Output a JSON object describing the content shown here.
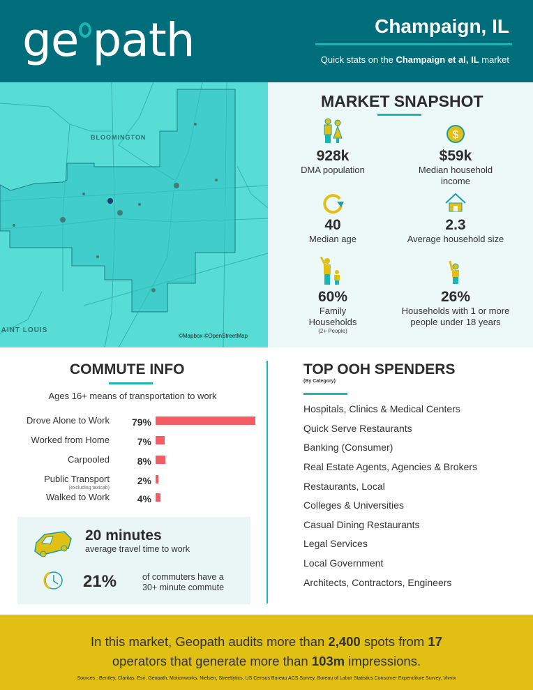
{
  "header": {
    "logo": "geopath",
    "city": "Champaign, IL",
    "subtitle_pre": "Quick stats on the ",
    "subtitle_bold": "Champaign et al, IL",
    "subtitle_post": " market"
  },
  "map": {
    "labels": [
      "BLOOMINGTON",
      "SAINT LOUIS"
    ],
    "attribution": "©Mapbox ©OpenStreetMap"
  },
  "snapshot": {
    "title": "MARKET SNAPSHOT",
    "stats": [
      {
        "icon": "couple-icon",
        "value": "928k",
        "label": "DMA population"
      },
      {
        "icon": "dollar-coin-icon",
        "value": "$59k",
        "label": "Median household income"
      },
      {
        "icon": "refresh-cycle-icon",
        "value": "40",
        "label": "Median age"
      },
      {
        "icon": "house-icon",
        "value": "2.3",
        "label": "Average household size"
      },
      {
        "icon": "parent-child-icon",
        "value": "60%",
        "label": "Family Households",
        "sublabel": "(2+ People)"
      },
      {
        "icon": "child-icon",
        "value": "26%",
        "label": "Households with 1 or more people under 18 years"
      }
    ]
  },
  "commute": {
    "title": "COMMUTE INFO",
    "subtitle": "Ages 16+ means of transportation to work",
    "rows": [
      {
        "label": "Drove Alone to Work",
        "value": 79,
        "display": "79%"
      },
      {
        "label": "Worked from Home",
        "value": 7,
        "display": "7%"
      },
      {
        "label": "Carpooled",
        "value": 8,
        "display": "8%"
      },
      {
        "label": "Public Transport",
        "note": "(excluding taxicab)",
        "value": 2,
        "display": "2%"
      },
      {
        "label": "Walked to Work",
        "value": 4,
        "display": "4%"
      }
    ],
    "travel_time": "20 minutes",
    "travel_time_label": "average travel time to work",
    "long_commute": "21%",
    "long_commute_label": "of commuters have a 30+ minute commute"
  },
  "spenders": {
    "title": "TOP OOH SPENDERS",
    "subtitle": "(By Category)",
    "items": [
      "Hospitals, Clinics & Medical Centers",
      "Quick Serve Restaurants",
      "Banking (Consumer)",
      "Real Estate Agents, Agencies & Brokers",
      "Restaurants, Local",
      "Colleges & Universities",
      "Casual Dining Restaurants",
      "Legal Services",
      "Local Government",
      "Architects, Contractors, Engineers"
    ]
  },
  "footer": {
    "t1": "In this market, Geopath audits more than ",
    "spots": "2,400",
    "t2": " spots from ",
    "operators": "17",
    "t3": " operators that generate more than ",
    "impressions": "103m",
    "t4": " impressions.",
    "sources": "Sources : Bentley, Claritas, Esri, Geopath, Motionworks, Nielsen, Streetlytics, US Census Bureau ACS Survey, Bureau of Labor Statistics Consumer Expenditure Survey, Vivvix"
  },
  "colors": {
    "header": "#006e7a",
    "accent": "#1ab5b5",
    "bar": "#f45b62",
    "footer": "#e2c013",
    "icon_yellow": "#e2c013"
  }
}
